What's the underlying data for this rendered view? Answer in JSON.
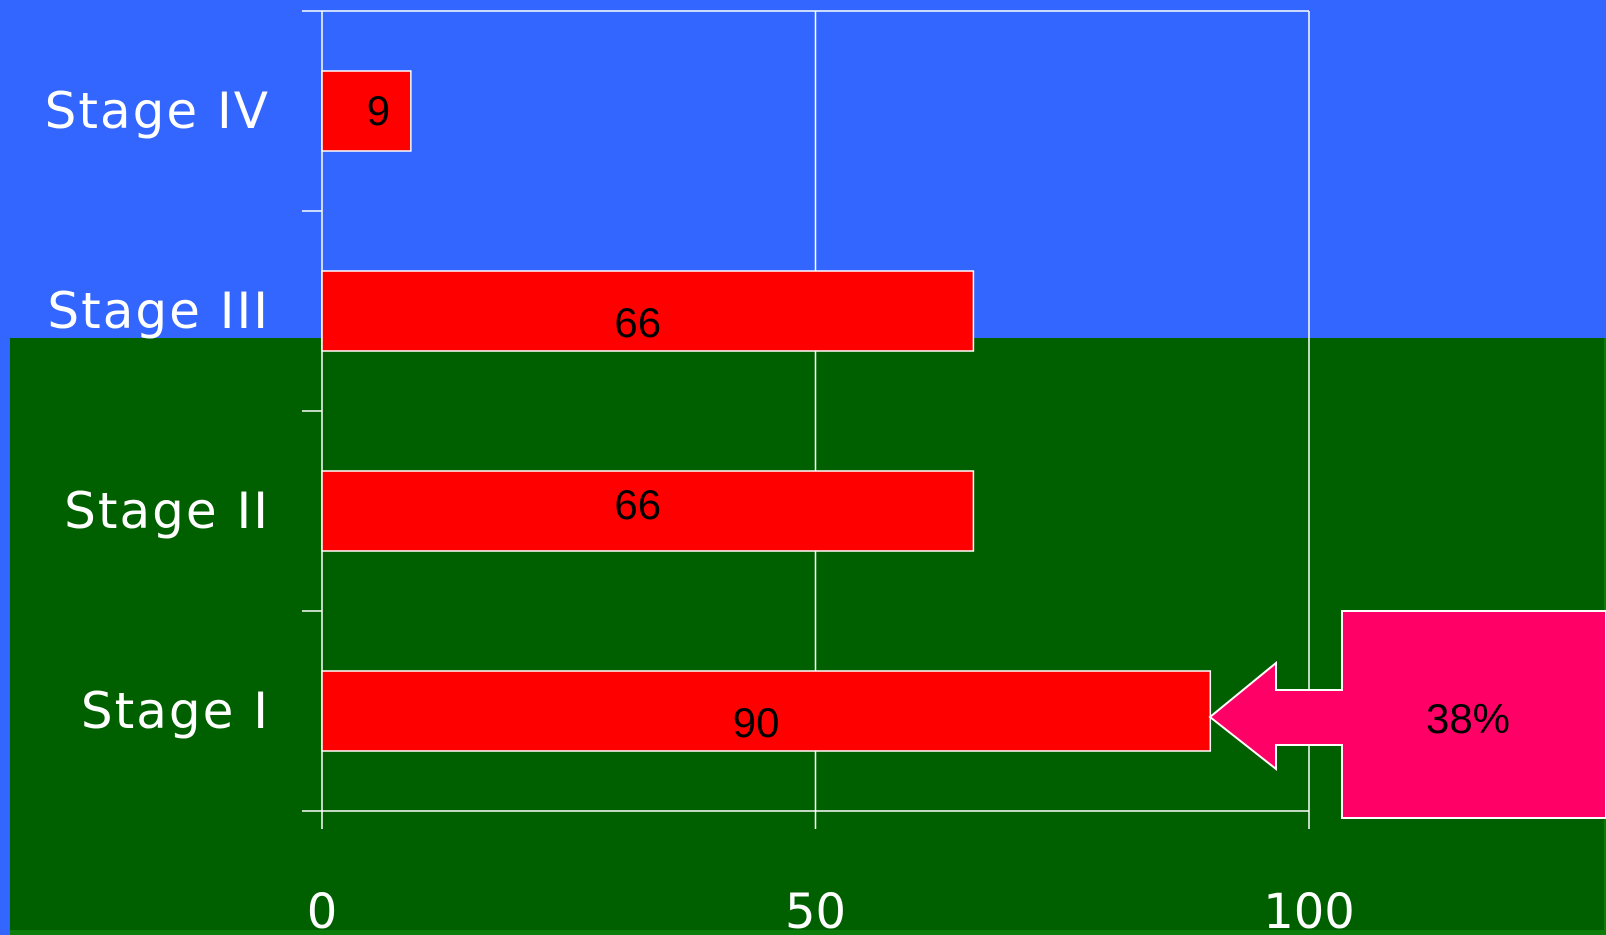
{
  "colors": {
    "background_top": "#3366ff",
    "background_bottom": "#006000",
    "bar_fill": "#ff0000",
    "bar_stroke": "#ffffff",
    "grid": "#ffffff",
    "callout_fill": "#ff0066"
  },
  "chart_data": {
    "type": "bar",
    "orientation": "horizontal",
    "categories": [
      "Stage I",
      "Stage II",
      "Stage III",
      "Stage IV"
    ],
    "values": [
      90,
      66,
      66,
      9
    ],
    "data_labels": [
      "90",
      "66",
      "66",
      "9"
    ],
    "xticks": [
      "0",
      "50",
      "100"
    ],
    "xtick_values": [
      0,
      50,
      100
    ],
    "xlim": [
      0,
      100
    ],
    "title": "",
    "xlabel": "",
    "ylabel": "",
    "grid": true,
    "legend": "none",
    "annotation": {
      "text": "38%",
      "shape": "left-arrow-callout",
      "points_to": "Stage I"
    }
  }
}
